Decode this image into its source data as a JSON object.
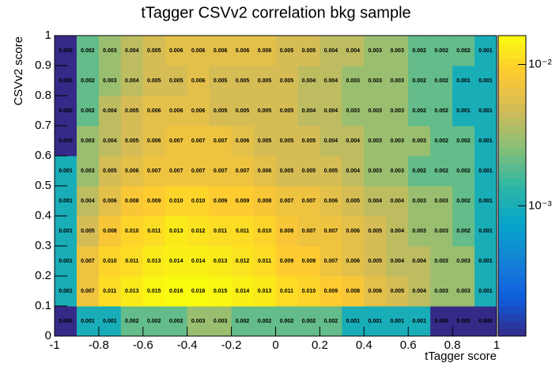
{
  "chart_data": {
    "type": "heatmap",
    "title": "tTagger CSVv2 correlation bkg sample",
    "x_label": "tTagger score",
    "y_label": "CSVv2 score",
    "xbins": [
      -1,
      -0.9,
      -0.8,
      -0.7,
      -0.6,
      -0.5,
      -0.4,
      -0.3,
      -0.2,
      -0.1,
      0,
      0.1,
      0.2,
      0.3,
      0.4,
      0.5,
      0.6,
      0.7,
      0.8,
      0.9,
      1
    ],
    "ybins": [
      0,
      0.1,
      0.2,
      0.3,
      0.4,
      0.5,
      0.6,
      0.7,
      0.8,
      0.9,
      1
    ],
    "xlim": [
      -1,
      1
    ],
    "ylim": [
      0,
      1
    ],
    "xticks": [
      -1,
      -0.8,
      -0.6,
      -0.4,
      -0.2,
      0,
      0.2,
      0.4,
      0.6,
      0.8,
      1
    ],
    "yticks": [
      0,
      0.1,
      0.2,
      0.3,
      0.4,
      0.5,
      0.6,
      0.7,
      0.8,
      0.9,
      1
    ],
    "values": [
      [
        0,
        0.001,
        0.001,
        0.002,
        0.002,
        0.002,
        0.003,
        0.003,
        0.002,
        0.002,
        0.002,
        0.002,
        0.002,
        0.001,
        0.001,
        0.001,
        0.001,
        0,
        0,
        0
      ],
      [
        0.001,
        0.007,
        0.011,
        0.013,
        0.015,
        0.016,
        0.016,
        0.015,
        0.014,
        0.013,
        0.011,
        0.01,
        0.009,
        0.008,
        0.006,
        0.005,
        0.004,
        0.003,
        0.003,
        0.001
      ],
      [
        0.001,
        0.007,
        0.01,
        0.011,
        0.013,
        0.014,
        0.014,
        0.013,
        0.012,
        0.011,
        0.009,
        0.009,
        0.007,
        0.006,
        0.005,
        0.004,
        0.004,
        0.003,
        0.003,
        0.001
      ],
      [
        0.001,
        0.005,
        0.008,
        0.01,
        0.011,
        0.013,
        0.012,
        0.011,
        0.011,
        0.01,
        0.008,
        0.007,
        0.007,
        0.006,
        0.005,
        0.004,
        0.003,
        0.003,
        0.002,
        0.001
      ],
      [
        0.001,
        0.004,
        0.006,
        0.008,
        0.009,
        0.01,
        0.01,
        0.009,
        0.009,
        0.008,
        0.007,
        0.007,
        0.006,
        0.005,
        0.004,
        0.004,
        0.003,
        0.003,
        0.002,
        0.001
      ],
      [
        0.001,
        0.003,
        0.005,
        0.006,
        0.007,
        0.007,
        0.007,
        0.007,
        0.007,
        0.006,
        0.005,
        0.005,
        0.005,
        0.004,
        0.003,
        0.003,
        0.002,
        0.002,
        0.002,
        0.001
      ],
      [
        0,
        0.003,
        0.004,
        0.005,
        0.006,
        0.007,
        0.007,
        0.007,
        0.006,
        0.005,
        0.005,
        0.005,
        0.004,
        0.004,
        0.003,
        0.003,
        0.003,
        0.002,
        0.002,
        0.001
      ],
      [
        0,
        0.002,
        0.004,
        0.005,
        0.006,
        0.006,
        0.006,
        0.005,
        0.005,
        0.005,
        0.005,
        0.004,
        0.004,
        0.003,
        0.003,
        0.003,
        0.002,
        0.002,
        0.001,
        0.001
      ],
      [
        0,
        0.002,
        0.003,
        0.004,
        0.005,
        0.005,
        0.006,
        0.005,
        0.005,
        0.005,
        0.005,
        0.004,
        0.004,
        0.003,
        0.003,
        0.003,
        0.002,
        0.002,
        0.001,
        0.001
      ],
      [
        0,
        0.002,
        0.003,
        0.004,
        0.005,
        0.006,
        0.006,
        0.006,
        0.006,
        0.006,
        0.005,
        0.005,
        0.004,
        0.004,
        0.003,
        0.003,
        0.002,
        0.002,
        0.002,
        0.001
      ]
    ],
    "value_labels": [
      [
        "0.000",
        "0.001",
        "0.001",
        "0.002",
        "0.002",
        "0.002",
        "0.003",
        "0.003",
        "0.002",
        "0.002",
        "0.002",
        "0.002",
        "0.002",
        "0.001",
        "0.001",
        "0.001",
        "0.001",
        "0.000",
        "0.000",
        "0.000"
      ],
      [
        "0.001",
        "0.007",
        "0.011",
        "0.013",
        "0.015",
        "0.016",
        "0.016",
        "0.015",
        "0.014",
        "0.013",
        "0.011",
        "0.010",
        "0.009",
        "0.008",
        "0.006",
        "0.005",
        "0.004",
        "0.003",
        "0.003",
        "0.001"
      ],
      [
        "0.001",
        "0.007",
        "0.010",
        "0.011",
        "0.013",
        "0.014",
        "0.014",
        "0.013",
        "0.012",
        "0.011",
        "0.009",
        "0.009",
        "0.007",
        "0.006",
        "0.005",
        "0.004",
        "0.004",
        "0.003",
        "0.003",
        "0.001"
      ],
      [
        "0.001",
        "0.005",
        "0.008",
        "0.010",
        "0.011",
        "0.013",
        "0.012",
        "0.011",
        "0.011",
        "0.010",
        "0.008",
        "0.007",
        "0.007",
        "0.006",
        "0.005",
        "0.004",
        "0.003",
        "0.003",
        "0.002",
        "0.001"
      ],
      [
        "0.001",
        "0.004",
        "0.006",
        "0.008",
        "0.009",
        "0.010",
        "0.010",
        "0.009",
        "0.009",
        "0.008",
        "0.007",
        "0.007",
        "0.006",
        "0.005",
        "0.004",
        "0.004",
        "0.003",
        "0.003",
        "0.002",
        "0.001"
      ],
      [
        "0.001",
        "0.003",
        "0.005",
        "0.006",
        "0.007",
        "0.007",
        "0.007",
        "0.007",
        "0.007",
        "0.006",
        "0.005",
        "0.005",
        "0.005",
        "0.004",
        "0.003",
        "0.003",
        "0.002",
        "0.002",
        "0.002",
        "0.001"
      ],
      [
        "0.000",
        "0.003",
        "0.004",
        "0.005",
        "0.006",
        "0.007",
        "0.007",
        "0.007",
        "0.006",
        "0.005",
        "0.005",
        "0.005",
        "0.004",
        "0.004",
        "0.003",
        "0.003",
        "0.003",
        "0.002",
        "0.002",
        "0.001"
      ],
      [
        "0.000",
        "0.002",
        "0.004",
        "0.005",
        "0.006",
        "0.006",
        "0.006",
        "0.005",
        "0.005",
        "0.005",
        "0.005",
        "0.004",
        "0.004",
        "0.003",
        "0.003",
        "0.003",
        "0.002",
        "0.002",
        "0.001",
        "0.001"
      ],
      [
        "0.000",
        "0.002",
        "0.003",
        "0.004",
        "0.005",
        "0.005",
        "0.006",
        "0.005",
        "0.005",
        "0.005",
        "0.005",
        "0.004",
        "0.004",
        "0.003",
        "0.003",
        "0.003",
        "0.002",
        "0.002",
        "0.001",
        "0.001"
      ],
      [
        "0.000",
        "0.002",
        "0.003",
        "0.004",
        "0.005",
        "0.006",
        "0.006",
        "0.006",
        "0.006",
        "0.006",
        "0.005",
        "0.005",
        "0.004",
        "0.004",
        "0.003",
        "0.003",
        "0.002",
        "0.002",
        "0.002",
        "0.001"
      ]
    ],
    "zlim": [
      0.00012,
      0.016
    ],
    "zlog": true,
    "zticks": [
      {
        "value": 0.001,
        "label": "10⁻³"
      },
      {
        "value": 0.01,
        "label": "10⁻²"
      }
    ],
    "palette": [
      "#352a87",
      "#0f5cdd",
      "#1481d6",
      "#06a4ca",
      "#2eb7a4",
      "#87bf77",
      "#d1bb59",
      "#fec832",
      "#f9fb0e"
    ]
  }
}
